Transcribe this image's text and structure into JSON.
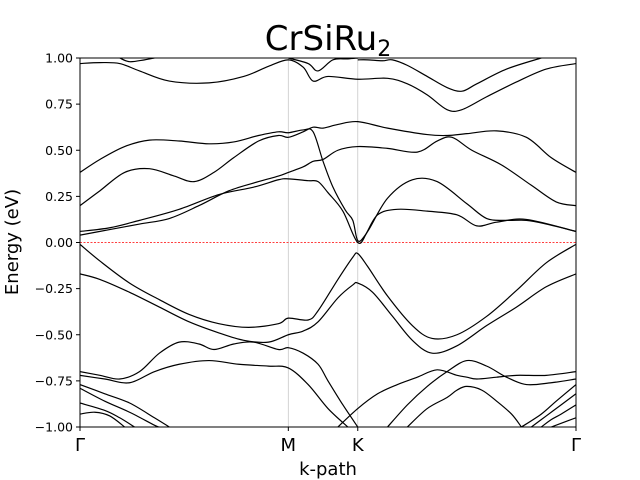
{
  "chart_data": {
    "type": "line",
    "title": "CrSiRu",
    "title_subscript": "2",
    "xlabel": "k-path",
    "ylabel": "Energy (eV)",
    "ylim": [
      -1.0,
      1.0
    ],
    "x_ticks": [
      {
        "label": "Γ",
        "pos": 0.0
      },
      {
        "label": "M",
        "pos": 0.42
      },
      {
        "label": "K",
        "pos": 0.56
      },
      {
        "label": "Γ",
        "pos": 1.0
      }
    ],
    "y_ticks": [
      -1.0,
      -0.75,
      -0.5,
      -0.25,
      0.0,
      0.25,
      0.5,
      0.75,
      1.0
    ],
    "fermi_level": {
      "y": 0.0,
      "color": "#ff0000",
      "style": "dashed"
    },
    "vertical_lines_at": [
      0.42,
      0.56
    ],
    "band_color": "#000000",
    "series": [
      {
        "points": [
          [
            0,
            0.97
          ],
          [
            0.04,
            0.975
          ],
          [
            0.08,
            0.97
          ],
          [
            0.12,
            0.93
          ],
          [
            0.18,
            0.875
          ],
          [
            0.26,
            0.865
          ],
          [
            0.33,
            0.9
          ],
          [
            0.38,
            0.955
          ],
          [
            0.42,
            0.99
          ],
          [
            0.45,
            0.95
          ],
          [
            0.47,
            0.875
          ],
          [
            0.5,
            0.9
          ],
          [
            0.56,
            0.885
          ],
          [
            0.62,
            0.89
          ],
          [
            0.66,
            0.86
          ],
          [
            0.7,
            0.8
          ],
          [
            0.74,
            0.72
          ],
          [
            0.77,
            0.72
          ],
          [
            0.82,
            0.79
          ],
          [
            0.88,
            0.87
          ],
          [
            0.94,
            0.94
          ],
          [
            1,
            0.97
          ]
        ]
      },
      {
        "points": [
          [
            0.08,
            1.0
          ],
          [
            0.1,
            0.98
          ],
          [
            0.13,
            0.99
          ],
          [
            0.15,
            1.0
          ]
        ]
      },
      {
        "points": [
          [
            0.42,
            1.0
          ],
          [
            0.46,
            0.97
          ],
          [
            0.48,
            0.93
          ],
          [
            0.51,
            0.99
          ],
          [
            0.54,
            0.995
          ],
          [
            0.56,
            1.0
          ]
        ]
      },
      {
        "points": [
          [
            0.56,
            0.99
          ],
          [
            0.58,
            0.99
          ],
          [
            0.61,
            0.985
          ],
          [
            0.63,
            0.99
          ],
          [
            0.66,
            0.96
          ],
          [
            0.7,
            0.9
          ],
          [
            0.74,
            0.84
          ],
          [
            0.77,
            0.82
          ],
          [
            0.8,
            0.86
          ],
          [
            0.86,
            0.94
          ],
          [
            0.93,
            1.0
          ]
        ]
      },
      {
        "points": [
          [
            0,
            0.38
          ],
          [
            0.04,
            0.45
          ],
          [
            0.09,
            0.52
          ],
          [
            0.14,
            0.555
          ],
          [
            0.2,
            0.55
          ],
          [
            0.26,
            0.535
          ],
          [
            0.31,
            0.545
          ],
          [
            0.36,
            0.58
          ],
          [
            0.4,
            0.6
          ],
          [
            0.42,
            0.595
          ],
          [
            0.45,
            0.61
          ],
          [
            0.47,
            0.6
          ],
          [
            0.49,
            0.44
          ],
          [
            0.51,
            0.3
          ],
          [
            0.535,
            0.175
          ],
          [
            0.55,
            0.12
          ],
          [
            0.56,
            0.01
          ],
          [
            0.575,
            0.04
          ],
          [
            0.6,
            0.15
          ],
          [
            0.64,
            0.18
          ],
          [
            0.7,
            0.17
          ],
          [
            0.76,
            0.15
          ],
          [
            0.8,
            0.09
          ],
          [
            0.84,
            0.11
          ],
          [
            0.9,
            0.125
          ],
          [
            1,
            0.06
          ]
        ]
      },
      {
        "points": [
          [
            0,
            0.2
          ],
          [
            0.04,
            0.28
          ],
          [
            0.09,
            0.38
          ],
          [
            0.14,
            0.4
          ],
          [
            0.19,
            0.36
          ],
          [
            0.23,
            0.33
          ],
          [
            0.27,
            0.38
          ],
          [
            0.31,
            0.46
          ],
          [
            0.36,
            0.55
          ],
          [
            0.4,
            0.58
          ],
          [
            0.42,
            0.57
          ],
          [
            0.45,
            0.6
          ],
          [
            0.47,
            0.625
          ],
          [
            0.49,
            0.62
          ],
          [
            0.52,
            0.64
          ],
          [
            0.56,
            0.655
          ],
          [
            0.62,
            0.62
          ],
          [
            0.7,
            0.585
          ],
          [
            0.74,
            0.58
          ],
          [
            0.78,
            0.59
          ],
          [
            0.84,
            0.605
          ],
          [
            0.9,
            0.57
          ],
          [
            0.95,
            0.46
          ],
          [
            1,
            0.38
          ]
        ]
      },
      {
        "points": [
          [
            0,
            0.06
          ],
          [
            0.06,
            0.08
          ],
          [
            0.12,
            0.12
          ],
          [
            0.2,
            0.18
          ],
          [
            0.28,
            0.26
          ],
          [
            0.35,
            0.3
          ],
          [
            0.4,
            0.34
          ],
          [
            0.42,
            0.345
          ],
          [
            0.46,
            0.335
          ],
          [
            0.48,
            0.33
          ],
          [
            0.5,
            0.27
          ],
          [
            0.53,
            0.17
          ],
          [
            0.56,
            0.0
          ],
          [
            0.58,
            0.06
          ],
          [
            0.62,
            0.24
          ],
          [
            0.67,
            0.34
          ],
          [
            0.72,
            0.33
          ],
          [
            0.78,
            0.21
          ],
          [
            0.82,
            0.13
          ],
          [
            0.86,
            0.12
          ],
          [
            0.9,
            0.12
          ],
          [
            0.94,
            0.1
          ],
          [
            1,
            0.06
          ]
        ]
      },
      {
        "points": [
          [
            0,
            0.04
          ],
          [
            0.06,
            0.07
          ],
          [
            0.12,
            0.1
          ],
          [
            0.18,
            0.13
          ],
          [
            0.24,
            0.2
          ],
          [
            0.3,
            0.28
          ],
          [
            0.36,
            0.33
          ],
          [
            0.4,
            0.36
          ],
          [
            0.42,
            0.38
          ],
          [
            0.45,
            0.41
          ],
          [
            0.47,
            0.44
          ],
          [
            0.49,
            0.45
          ],
          [
            0.52,
            0.5
          ],
          [
            0.56,
            0.52
          ],
          [
            0.62,
            0.51
          ],
          [
            0.68,
            0.49
          ],
          [
            0.72,
            0.55
          ],
          [
            0.75,
            0.57
          ],
          [
            0.79,
            0.5
          ],
          [
            0.85,
            0.42
          ],
          [
            0.91,
            0.31
          ],
          [
            0.96,
            0.22
          ],
          [
            1,
            0.2
          ]
        ]
      },
      {
        "points": [
          [
            0,
            -0.01
          ],
          [
            0.04,
            -0.1
          ],
          [
            0.1,
            -0.22
          ],
          [
            0.16,
            -0.31
          ],
          [
            0.22,
            -0.39
          ],
          [
            0.28,
            -0.44
          ],
          [
            0.34,
            -0.46
          ],
          [
            0.4,
            -0.44
          ],
          [
            0.42,
            -0.41
          ],
          [
            0.46,
            -0.42
          ],
          [
            0.48,
            -0.37
          ],
          [
            0.52,
            -0.2
          ],
          [
            0.55,
            -0.08
          ],
          [
            0.56,
            -0.06
          ],
          [
            0.58,
            -0.13
          ],
          [
            0.62,
            -0.29
          ],
          [
            0.67,
            -0.45
          ],
          [
            0.71,
            -0.52
          ],
          [
            0.76,
            -0.5
          ],
          [
            0.82,
            -0.4
          ],
          [
            0.88,
            -0.26
          ],
          [
            0.94,
            -0.11
          ],
          [
            1,
            -0.01
          ]
        ]
      },
      {
        "points": [
          [
            0,
            -0.17
          ],
          [
            0.04,
            -0.2
          ],
          [
            0.1,
            -0.27
          ],
          [
            0.16,
            -0.35
          ],
          [
            0.22,
            -0.43
          ],
          [
            0.28,
            -0.49
          ],
          [
            0.33,
            -0.53
          ],
          [
            0.38,
            -0.54
          ],
          [
            0.42,
            -0.5
          ],
          [
            0.45,
            -0.48
          ],
          [
            0.48,
            -0.43
          ],
          [
            0.52,
            -0.3
          ],
          [
            0.55,
            -0.23
          ],
          [
            0.56,
            -0.22
          ],
          [
            0.59,
            -0.27
          ],
          [
            0.63,
            -0.4
          ],
          [
            0.67,
            -0.53
          ],
          [
            0.71,
            -0.6
          ],
          [
            0.76,
            -0.56
          ],
          [
            0.82,
            -0.45
          ],
          [
            0.88,
            -0.35
          ],
          [
            0.94,
            -0.24
          ],
          [
            1,
            -0.17
          ]
        ]
      },
      {
        "points": [
          [
            0,
            -0.7
          ],
          [
            0.04,
            -0.72
          ],
          [
            0.08,
            -0.74
          ],
          [
            0.12,
            -0.7
          ],
          [
            0.16,
            -0.6
          ],
          [
            0.2,
            -0.54
          ],
          [
            0.24,
            -0.55
          ],
          [
            0.27,
            -0.58
          ],
          [
            0.31,
            -0.55
          ],
          [
            0.35,
            -0.54
          ],
          [
            0.4,
            -0.58
          ],
          [
            0.42,
            -0.57
          ],
          [
            0.45,
            -0.6
          ],
          [
            0.48,
            -0.66
          ],
          [
            0.5,
            -0.75
          ],
          [
            0.53,
            -0.88
          ],
          [
            0.56,
            -1.0
          ]
        ]
      },
      {
        "points": [
          [
            0.52,
            -1.0
          ],
          [
            0.56,
            -0.9
          ],
          [
            0.6,
            -0.82
          ],
          [
            0.64,
            -0.77
          ],
          [
            0.68,
            -0.73
          ],
          [
            0.72,
            -0.69
          ],
          [
            0.76,
            -0.72
          ],
          [
            0.78,
            -0.73
          ],
          [
            0.8,
            -0.74
          ],
          [
            0.84,
            -0.73
          ],
          [
            0.88,
            -0.72
          ],
          [
            0.94,
            -0.72
          ],
          [
            1,
            -0.7
          ]
        ]
      },
      {
        "points": [
          [
            0,
            -0.72
          ],
          [
            0.05,
            -0.74
          ],
          [
            0.1,
            -0.76
          ],
          [
            0.15,
            -0.7
          ],
          [
            0.2,
            -0.66
          ],
          [
            0.26,
            -0.64
          ],
          [
            0.32,
            -0.66
          ],
          [
            0.38,
            -0.67
          ],
          [
            0.42,
            -0.68
          ],
          [
            0.46,
            -0.77
          ],
          [
            0.5,
            -0.9
          ],
          [
            0.54,
            -1.0
          ]
        ]
      },
      {
        "points": [
          [
            0.62,
            -1.0
          ],
          [
            0.66,
            -0.88
          ],
          [
            0.7,
            -0.78
          ],
          [
            0.74,
            -0.7
          ],
          [
            0.78,
            -0.64
          ],
          [
            0.82,
            -0.67
          ],
          [
            0.86,
            -0.73
          ],
          [
            0.9,
            -0.77
          ],
          [
            0.95,
            -0.76
          ],
          [
            1,
            -0.74
          ]
        ]
      },
      {
        "points": [
          [
            0,
            -0.77
          ],
          [
            0.05,
            -0.82
          ],
          [
            0.1,
            -0.87
          ],
          [
            0.15,
            -0.95
          ],
          [
            0.18,
            -1.0
          ]
        ]
      },
      {
        "points": [
          [
            0,
            -0.79
          ],
          [
            0.05,
            -0.86
          ],
          [
            0.1,
            -0.92
          ],
          [
            0.15,
            -0.99
          ],
          [
            0.16,
            -1.0
          ]
        ]
      },
      {
        "points": [
          [
            0,
            -0.87
          ],
          [
            0.05,
            -0.91
          ],
          [
            0.08,
            -0.95
          ],
          [
            0.11,
            -1.0
          ]
        ]
      },
      {
        "points": [
          [
            0,
            -0.93
          ],
          [
            0.03,
            -0.92
          ],
          [
            0.06,
            -0.94
          ],
          [
            0.09,
            -1.0
          ]
        ]
      },
      {
        "points": [
          [
            0.66,
            -1.0
          ],
          [
            0.7,
            -0.9
          ],
          [
            0.74,
            -0.84
          ],
          [
            0.76,
            -0.8
          ],
          [
            0.78,
            -0.78
          ],
          [
            0.81,
            -0.8
          ],
          [
            0.84,
            -0.86
          ],
          [
            0.87,
            -0.93
          ],
          [
            0.89,
            -1.0
          ]
        ]
      },
      {
        "points": [
          [
            0.89,
            -1.0
          ],
          [
            0.93,
            -0.93
          ],
          [
            0.96,
            -0.86
          ],
          [
            1,
            -0.77
          ]
        ]
      },
      {
        "points": [
          [
            0.91,
            -1.0
          ],
          [
            0.94,
            -0.94
          ],
          [
            0.97,
            -0.88
          ],
          [
            1,
            -0.82
          ]
        ]
      },
      {
        "points": [
          [
            0.93,
            -1.0
          ],
          [
            0.95,
            -0.96
          ],
          [
            0.97,
            -0.93
          ],
          [
            1,
            -0.88
          ]
        ]
      },
      {
        "points": [
          [
            0.95,
            -1.0
          ],
          [
            0.97,
            -0.98
          ],
          [
            1,
            -0.95
          ]
        ]
      }
    ]
  }
}
